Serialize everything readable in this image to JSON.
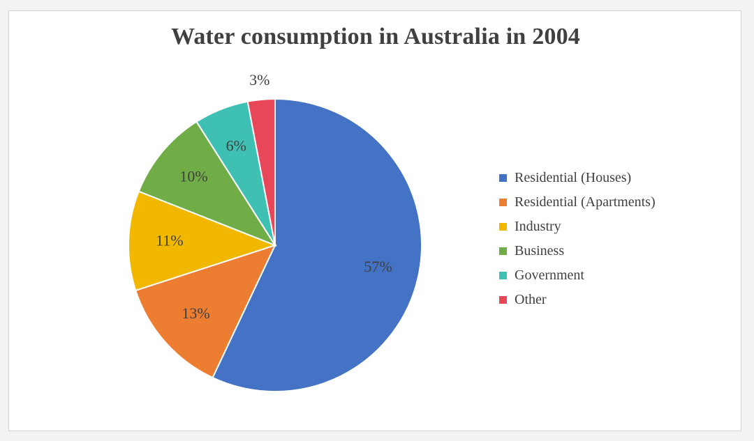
{
  "chart_data": {
    "type": "pie",
    "title": "Water consumption in Australia in 2004",
    "categories": [
      "Residential (Houses)",
      "Residential (Apartments)",
      "Industry",
      "Business",
      "Government",
      "Other"
    ],
    "values": [
      57,
      13,
      11,
      10,
      6,
      3
    ],
    "data_labels": [
      "57%",
      "13%",
      "11%",
      "10%",
      "6%",
      "3%"
    ],
    "colors": [
      "#4472C4",
      "#ED7D31",
      "#F2B800",
      "#70AD47",
      "#3EC1B3",
      "#E8475A"
    ],
    "legend_position": "right"
  }
}
